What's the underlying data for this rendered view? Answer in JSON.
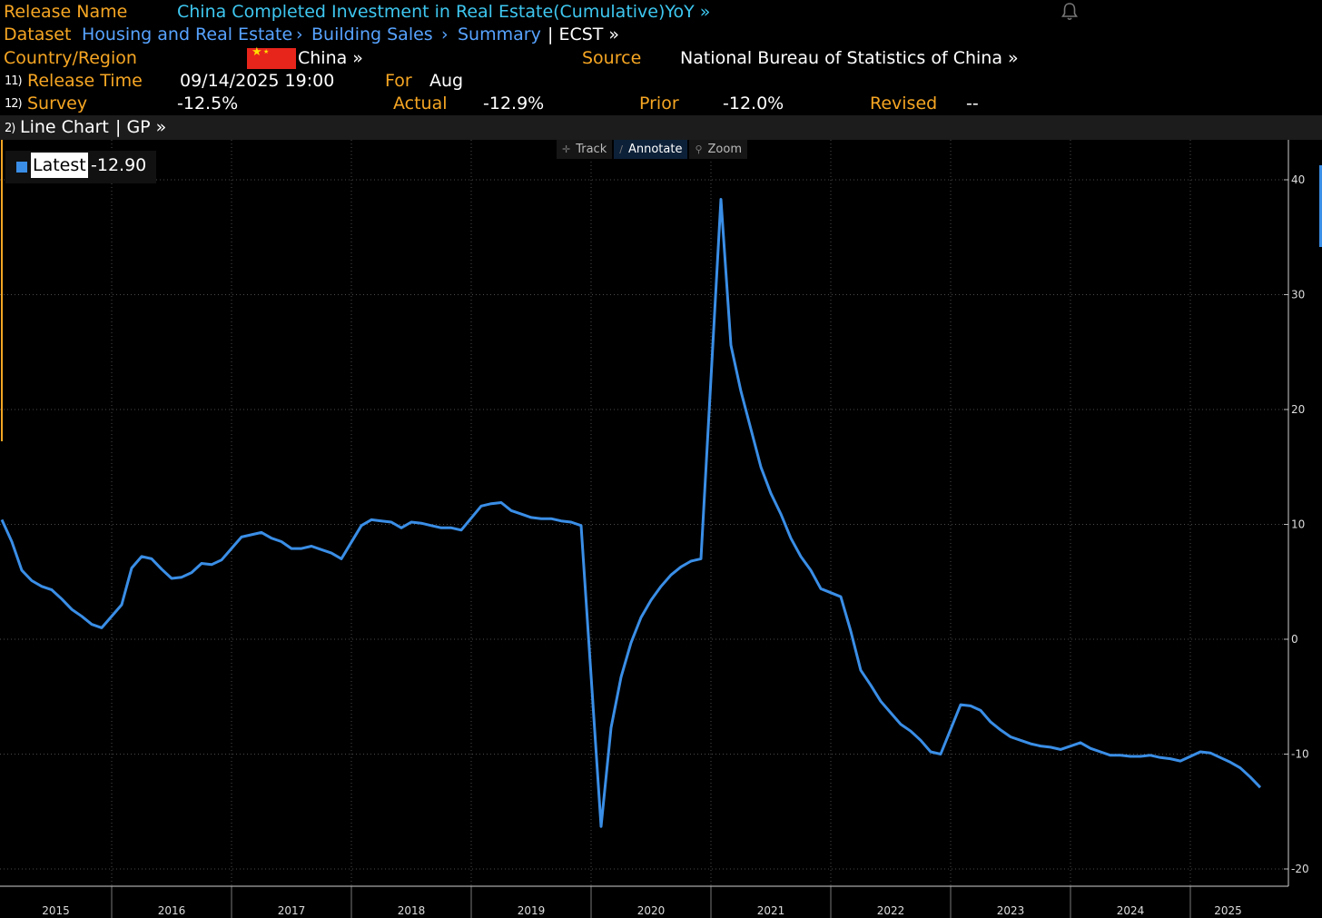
{
  "header": {
    "release_name_label": "Release Name",
    "release_name": "China Completed Investment in Real Estate(Cumulative)YoY »",
    "dataset_label": "Dataset",
    "dataset_path": [
      "Housing and Real Estate",
      "Building Sales",
      "Summary"
    ],
    "dataset_code": "| ECST »",
    "country_label": "Country/Region",
    "country": "China »",
    "source_label": "Source",
    "source": "National Bureau of Statistics of China »",
    "release_time_num": "11)",
    "release_time_label": "Release Time",
    "release_time": "09/14/2025 19:00",
    "for_label": "For",
    "for_value": "Aug",
    "survey_num": "12)",
    "survey_label": "Survey",
    "survey": "-12.5%",
    "actual_label": "Actual",
    "actual": "-12.9%",
    "prior_label": "Prior",
    "prior": "-12.0%",
    "revised_label": "Revised",
    "revised": "--"
  },
  "chart_header": {
    "num": "2)",
    "title": "Line Chart",
    "gp": "| GP »"
  },
  "toolbar": {
    "track": "Track",
    "annotate": "Annotate",
    "zoom": "Zoom"
  },
  "legend": {
    "label": "Latest",
    "value": "-12.90"
  },
  "colors": {
    "line": "#3a8ee6",
    "accent": "#f6a623",
    "background": "#000000"
  },
  "chart_data": {
    "type": "line",
    "title": "",
    "ylim": [
      -20,
      42
    ],
    "yticks": [
      40,
      30,
      20,
      10,
      0,
      -10,
      -20
    ],
    "grid": true,
    "x_tick_labels": [
      "2015",
      "2016",
      "2017",
      "2018",
      "2019",
      "2020",
      "2021",
      "2022",
      "2023",
      "2024",
      "2025"
    ],
    "series": [
      {
        "name": "Latest",
        "x": [
          "2015-02",
          "2015-03",
          "2015-04",
          "2015-05",
          "2015-06",
          "2015-07",
          "2015-08",
          "2015-09",
          "2015-10",
          "2015-11",
          "2015-12",
          "2016-02",
          "2016-03",
          "2016-04",
          "2016-05",
          "2016-06",
          "2016-07",
          "2016-08",
          "2016-09",
          "2016-10",
          "2016-11",
          "2016-12",
          "2017-02",
          "2017-03",
          "2017-04",
          "2017-05",
          "2017-06",
          "2017-07",
          "2017-08",
          "2017-09",
          "2017-10",
          "2017-11",
          "2017-12",
          "2018-02",
          "2018-03",
          "2018-04",
          "2018-05",
          "2018-06",
          "2018-07",
          "2018-08",
          "2018-09",
          "2018-10",
          "2018-11",
          "2018-12",
          "2019-02",
          "2019-03",
          "2019-04",
          "2019-05",
          "2019-06",
          "2019-07",
          "2019-08",
          "2019-09",
          "2019-10",
          "2019-11",
          "2019-12",
          "2020-02",
          "2020-03",
          "2020-04",
          "2020-05",
          "2020-06",
          "2020-07",
          "2020-08",
          "2020-09",
          "2020-10",
          "2020-11",
          "2020-12",
          "2021-02",
          "2021-03",
          "2021-04",
          "2021-05",
          "2021-06",
          "2021-07",
          "2021-08",
          "2021-09",
          "2021-10",
          "2021-11",
          "2021-12",
          "2022-02",
          "2022-03",
          "2022-04",
          "2022-05",
          "2022-06",
          "2022-07",
          "2022-08",
          "2022-09",
          "2022-10",
          "2022-11",
          "2022-12",
          "2023-02",
          "2023-03",
          "2023-04",
          "2023-05",
          "2023-06",
          "2023-07",
          "2023-08",
          "2023-09",
          "2023-10",
          "2023-11",
          "2023-12",
          "2024-02",
          "2024-03",
          "2024-04",
          "2024-05",
          "2024-06",
          "2024-07",
          "2024-08",
          "2024-09",
          "2024-10",
          "2024-11",
          "2024-12",
          "2025-02",
          "2025-03",
          "2025-04",
          "2025-05",
          "2025-06",
          "2025-07",
          "2025-08"
        ],
        "values": [
          10.4,
          8.5,
          6.0,
          5.1,
          4.6,
          4.3,
          3.5,
          2.6,
          2.0,
          1.3,
          1.0,
          3.0,
          6.2,
          7.2,
          7.0,
          6.1,
          5.3,
          5.4,
          5.8,
          6.6,
          6.5,
          6.9,
          8.9,
          9.1,
          9.3,
          8.8,
          8.5,
          7.9,
          7.9,
          8.1,
          7.8,
          7.5,
          7.0,
          9.9,
          10.4,
          10.3,
          10.2,
          9.7,
          10.2,
          10.1,
          9.9,
          9.7,
          9.7,
          9.5,
          11.6,
          11.8,
          11.9,
          11.2,
          10.9,
          10.6,
          10.5,
          10.5,
          10.3,
          10.2,
          9.9,
          -16.3,
          -7.7,
          -3.3,
          -0.3,
          1.9,
          3.4,
          4.6,
          5.6,
          6.3,
          6.8,
          7.0,
          38.3,
          25.6,
          21.6,
          18.3,
          15.0,
          12.7,
          10.9,
          8.8,
          7.2,
          6.0,
          4.4,
          3.7,
          0.7,
          -2.7,
          -4.0,
          -5.4,
          -6.4,
          -7.4,
          -8.0,
          -8.8,
          -9.8,
          -10.0,
          -5.7,
          -5.8,
          -6.2,
          -7.2,
          -7.9,
          -8.5,
          -8.8,
          -9.1,
          -9.3,
          -9.4,
          -9.6,
          -9.0,
          -9.5,
          -9.8,
          -10.1,
          -10.1,
          -10.2,
          -10.2,
          -10.1,
          -10.3,
          -10.4,
          -10.6,
          -9.8,
          -9.9,
          -10.3,
          -10.7,
          -11.2,
          -12.0,
          -12.9
        ]
      }
    ]
  }
}
